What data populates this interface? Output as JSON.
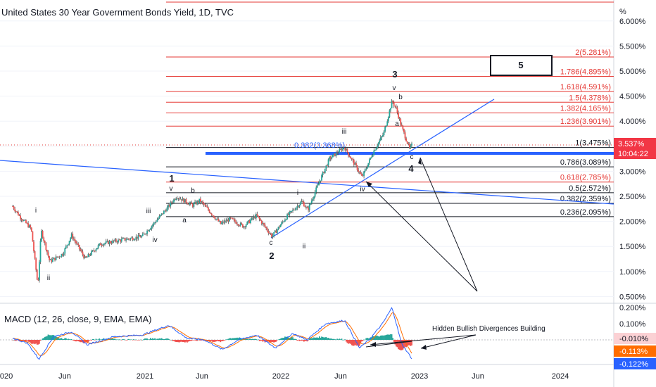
{
  "chart_data": [
    {
      "type": "candlestick",
      "title": "United States 30 Year Government Bonds Yield, 1D, TVC",
      "y_unit": "%",
      "ylim": [
        0.45,
        6.05
      ],
      "y_ticks": [
        "6.000%",
        "5.500%",
        "5.000%",
        "4.500%",
        "4.000%",
        "3.500%",
        "3.000%",
        "2.500%",
        "2.000%",
        "1.500%",
        "1.000%",
        "0.500%"
      ],
      "x_ticks": [
        "2020",
        "Jun",
        "2021",
        "Jun",
        "2022",
        "Jun",
        "2023",
        "Jun",
        "2024"
      ],
      "price_path": [
        [
          "2020-01-01",
          2.3
        ],
        [
          "2020-01-20",
          2.1
        ],
        [
          "2020-02-20",
          1.85
        ],
        [
          "2020-03-09",
          0.72
        ],
        [
          "2020-03-18",
          1.82
        ],
        [
          "2020-04-10",
          1.2
        ],
        [
          "2020-05-15",
          1.35
        ],
        [
          "2020-06-08",
          1.72
        ],
        [
          "2020-07-15",
          1.25
        ],
        [
          "2020-08-25",
          1.55
        ],
        [
          "2020-10-15",
          1.62
        ],
        [
          "2020-12-15",
          1.7
        ],
        [
          "2021-01-15",
          1.95
        ],
        [
          "2021-02-25",
          2.3
        ],
        [
          "2021-03-18",
          2.5
        ],
        [
          "2021-05-01",
          2.32
        ],
        [
          "2021-05-20",
          2.42
        ],
        [
          "2021-07-15",
          1.95
        ],
        [
          "2021-08-10",
          2.05
        ],
        [
          "2021-09-15",
          1.9
        ],
        [
          "2021-10-20",
          2.12
        ],
        [
          "2021-12-01",
          1.7
        ],
        [
          "2022-01-10",
          2.1
        ],
        [
          "2022-02-20",
          2.4
        ],
        [
          "2022-03-07",
          2.22
        ],
        [
          "2022-04-05",
          2.75
        ],
        [
          "2022-05-05",
          3.25
        ],
        [
          "2022-06-14",
          3.48
        ],
        [
          "2022-07-15",
          3.1
        ],
        [
          "2022-08-01",
          2.88
        ],
        [
          "2022-09-01",
          3.4
        ],
        [
          "2022-09-28",
          3.75
        ],
        [
          "2022-10-21",
          4.4
        ],
        [
          "2022-11-01",
          4.25
        ],
        [
          "2022-11-15",
          3.9
        ],
        [
          "2022-12-07",
          3.45
        ],
        [
          "2022-12-15",
          3.54
        ]
      ],
      "last_price": "3.537%",
      "countdown": "10:04:22",
      "fib_levels": [
        {
          "label": "2(5.281%)",
          "value": 5.281
        },
        {
          "label": "1.786(4.895%)",
          "value": 4.895
        },
        {
          "label": "1.618(4.591%)",
          "value": 4.591
        },
        {
          "label": "1.5(4.378%)",
          "value": 4.378
        },
        {
          "label": "1.382(4.165%)",
          "value": 4.165
        },
        {
          "label": "1.236(3.901%)",
          "value": 3.901
        },
        {
          "label": "1(3.475%)",
          "value": 3.475
        },
        {
          "label": "0.786(3.089%)",
          "value": 3.089
        },
        {
          "label": "0.618(2.785%)",
          "value": 2.785
        },
        {
          "label": "0.5(2.572%)",
          "value": 2.572
        },
        {
          "label": "0.382(2.359%)",
          "value": 2.359
        },
        {
          "label": "0.236(2.095%)",
          "value": 2.095
        }
      ],
      "annotations": {
        "retrace_label": "0.382(3.368%)",
        "wave_box": "5",
        "big_waves": [
          "1",
          "2",
          "3",
          "4"
        ],
        "small_waves": [
          "i",
          "ii",
          "iii",
          "iv",
          "v",
          "a",
          "b",
          "c",
          "i",
          "ii",
          "iii",
          "iv",
          "v",
          "a",
          "b",
          "c"
        ]
      },
      "colors": {
        "up": "#26a69a",
        "down": "#ef5350",
        "wick": "#3a3a3a",
        "fib_red": "#e53935",
        "fib_black": "#131722",
        "trend": "#2962ff",
        "badge_red": "#f23645"
      }
    },
    {
      "type": "macd",
      "title": "MACD (12, 26, close, 9, EMA, EMA)",
      "ylim": [
        -0.13,
        0.21
      ],
      "y_ticks": [
        "0.200%",
        "0.100%"
      ],
      "badges": [
        {
          "text": "-0.010%",
          "value": -0.01,
          "bg": "#fbd1d4",
          "fg": "#131722"
        },
        {
          "text": "-0.113%",
          "value": -0.113,
          "bg": "#ff6d00",
          "fg": "#ffffff"
        },
        {
          "text": "-0.122%",
          "value": -0.122,
          "bg": "#2962ff",
          "fg": "#ffffff"
        }
      ],
      "annotation": "Hidden Bullish Divergences Building",
      "macd_path": [
        [
          "2020-01-01",
          0.01
        ],
        [
          "2020-02-10",
          -0.02
        ],
        [
          "2020-03-12",
          -0.12
        ],
        [
          "2020-04-20",
          0.02
        ],
        [
          "2020-06-08",
          0.05
        ],
        [
          "2020-07-20",
          -0.03
        ],
        [
          "2020-10-01",
          0.02
        ],
        [
          "2020-12-15",
          0.03
        ],
        [
          "2021-02-25",
          0.09
        ],
        [
          "2021-04-15",
          0.01
        ],
        [
          "2021-06-01",
          0.0
        ],
        [
          "2021-07-20",
          -0.06
        ],
        [
          "2021-09-01",
          0.0
        ],
        [
          "2021-10-20",
          0.03
        ],
        [
          "2021-12-10",
          -0.05
        ],
        [
          "2022-01-25",
          0.04
        ],
        [
          "2022-03-05",
          0.0
        ],
        [
          "2022-04-25",
          0.1
        ],
        [
          "2022-06-15",
          0.12
        ],
        [
          "2022-07-25",
          -0.05
        ],
        [
          "2022-08-20",
          0.0
        ],
        [
          "2022-09-25",
          0.1
        ],
        [
          "2022-10-21",
          0.2
        ],
        [
          "2022-11-15",
          -0.02
        ],
        [
          "2022-12-15",
          -0.122
        ]
      ],
      "colors": {
        "macd": "#2962ff",
        "signal": "#ff6d00",
        "hist_up": "#26a69a",
        "hist_down": "#ef5350"
      }
    }
  ]
}
